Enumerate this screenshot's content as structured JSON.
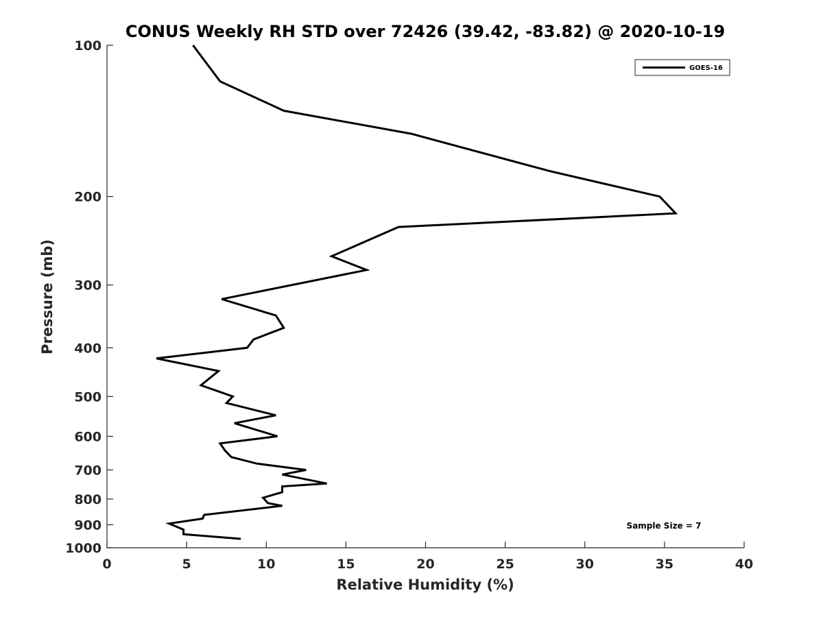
{
  "chart_data": {
    "type": "line",
    "title": "CONUS Weekly RH STD over 72426 (39.42, -83.82) @ 2020-10-19",
    "xlabel": "Relative Humidity (%)",
    "ylabel": "Pressure (mb)",
    "xlim": [
      0,
      40
    ],
    "ylim": [
      100,
      1000
    ],
    "y_scale": "log",
    "y_reversed": true,
    "grid": false,
    "legend_position": "top-right",
    "x_ticks": [
      "0",
      "5",
      "10",
      "15",
      "20",
      "25",
      "30",
      "35",
      "40"
    ],
    "y_ticks": [
      "100",
      "200",
      "300",
      "400",
      "500",
      "600",
      "700",
      "800",
      "900",
      "1000"
    ],
    "series": [
      {
        "name": "GOES-16",
        "color": "#000000",
        "x": [
          5.4,
          7.1,
          11.1,
          19.1,
          27.8,
          34.7,
          35.7,
          18.3,
          14.1,
          16.3,
          7.2,
          10.6,
          11.1,
          9.2,
          8.8,
          3.1,
          7.0,
          5.9,
          7.9,
          7.5,
          10.6,
          8.0,
          10.7,
          7.1,
          7.4,
          7.8,
          9.4,
          12.5,
          11.0,
          13.8,
          11.0,
          11.0,
          9.8,
          10.1,
          11.0,
          6.1,
          6.0,
          3.9,
          4.8,
          4.8,
          8.4
        ],
        "y": [
          100,
          118,
          135,
          150,
          178,
          200,
          216,
          230,
          263,
          280,
          320,
          345,
          365,
          385,
          400,
          420,
          445,
          475,
          500,
          515,
          545,
          565,
          600,
          620,
          640,
          660,
          680,
          700,
          715,
          745,
          755,
          775,
          795,
          815,
          825,
          860,
          875,
          895,
          920,
          940,
          960
        ]
      }
    ],
    "annotations": [
      "Sample Size = 7"
    ]
  }
}
